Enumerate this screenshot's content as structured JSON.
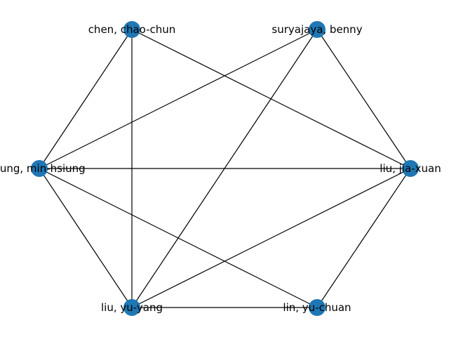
{
  "graph": {
    "node_color": "#1f77b4",
    "edge_color": "#000000",
    "nodes": [
      {
        "id": "chen",
        "label": "chen, chao-chun"
      },
      {
        "id": "suryajaya",
        "label": "suryajaya, benny"
      },
      {
        "id": "hung",
        "label": "hung, min-hsiung"
      },
      {
        "id": "liujx",
        "label": "liu, jia-xuan"
      },
      {
        "id": "liuyy",
        "label": "liu, yu-yang"
      },
      {
        "id": "lin",
        "label": "lin, yu-chuan"
      }
    ],
    "edges": [
      [
        "chen",
        "hung"
      ],
      [
        "chen",
        "liuyy"
      ],
      [
        "chen",
        "liujx"
      ],
      [
        "suryajaya",
        "hung"
      ],
      [
        "suryajaya",
        "liuyy"
      ],
      [
        "suryajaya",
        "liujx"
      ],
      [
        "hung",
        "liujx"
      ],
      [
        "hung",
        "liuyy"
      ],
      [
        "hung",
        "lin"
      ],
      [
        "liujx",
        "liuyy"
      ],
      [
        "liujx",
        "lin"
      ],
      [
        "liuyy",
        "lin"
      ]
    ]
  }
}
